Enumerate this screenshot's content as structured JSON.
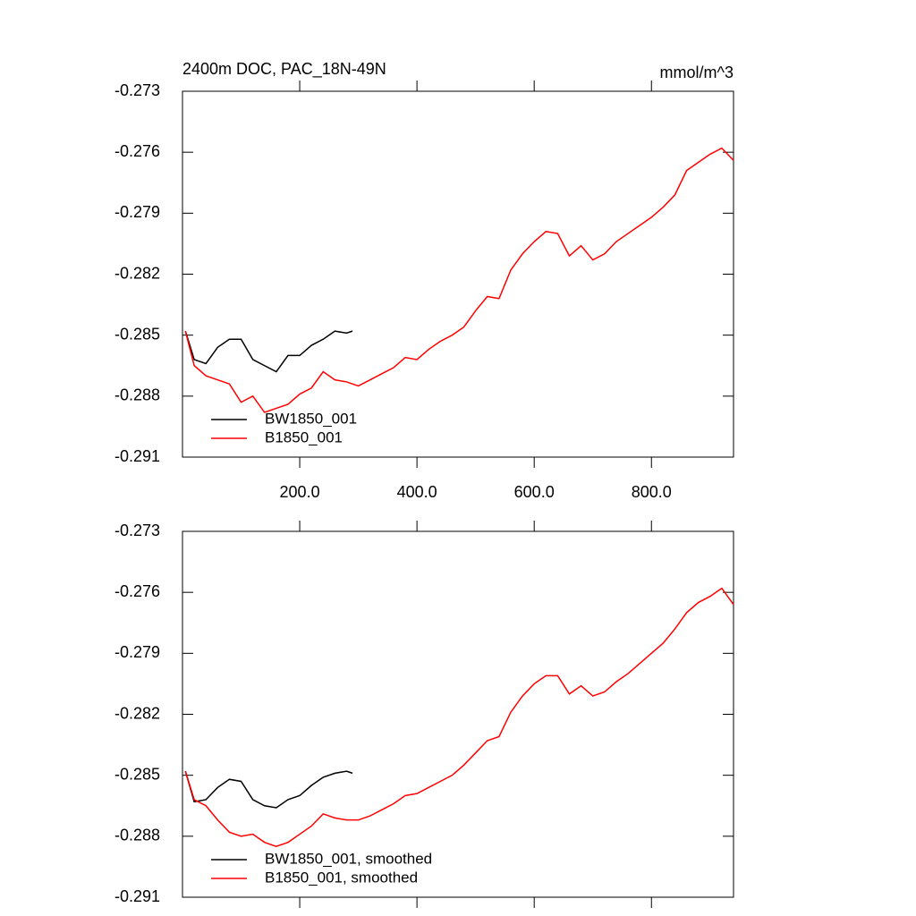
{
  "chart_data": [
    {
      "type": "line",
      "title": "2400m DOC, PAC_18N-49N",
      "subtitle": "mmol/m^3",
      "xlim": [
        0,
        940
      ],
      "ylim": [
        -0.291,
        -0.273
      ],
      "xticks": [
        {
          "value": 200,
          "label": "200.0"
        },
        {
          "value": 400,
          "label": "400.0"
        },
        {
          "value": 600,
          "label": "600.0"
        },
        {
          "value": 800,
          "label": "800.0"
        }
      ],
      "yticks": [
        -0.291,
        -0.288,
        -0.285,
        -0.282,
        -0.279,
        -0.276,
        -0.273
      ],
      "xtick_labels": true,
      "grid": false,
      "legend": "lower left",
      "series": [
        {
          "name": "BW1850_001",
          "color": "#000000",
          "x": [
            5,
            20,
            40,
            60,
            80,
            100,
            120,
            140,
            160,
            180,
            200,
            220,
            240,
            260,
            280,
            290
          ],
          "values": [
            -0.2848,
            -0.2862,
            -0.2864,
            -0.2856,
            -0.2852,
            -0.2852,
            -0.2862,
            -0.2865,
            -0.2868,
            -0.286,
            -0.286,
            -0.2855,
            -0.2852,
            -0.2848,
            -0.2849,
            -0.2848
          ]
        },
        {
          "name": "B1850_001",
          "color": "#ff0000",
          "x": [
            5,
            20,
            40,
            60,
            80,
            100,
            120,
            140,
            160,
            180,
            200,
            220,
            240,
            260,
            280,
            300,
            320,
            340,
            360,
            380,
            400,
            420,
            440,
            460,
            480,
            500,
            520,
            540,
            560,
            580,
            600,
            620,
            640,
            660,
            680,
            700,
            720,
            740,
            760,
            780,
            800,
            820,
            840,
            860,
            880,
            900,
            920,
            940
          ],
          "values": [
            -0.2848,
            -0.2865,
            -0.287,
            -0.2872,
            -0.2874,
            -0.2883,
            -0.288,
            -0.2888,
            -0.2886,
            -0.2884,
            -0.2879,
            -0.2876,
            -0.2868,
            -0.2872,
            -0.2873,
            -0.2875,
            -0.2872,
            -0.2869,
            -0.2866,
            -0.2861,
            -0.2862,
            -0.2857,
            -0.2853,
            -0.285,
            -0.2846,
            -0.2838,
            -0.2831,
            -0.2832,
            -0.2818,
            -0.281,
            -0.2804,
            -0.2799,
            -0.28,
            -0.2811,
            -0.2806,
            -0.2813,
            -0.281,
            -0.2804,
            -0.28,
            -0.2796,
            -0.2792,
            -0.2787,
            -0.2781,
            -0.2769,
            -0.2765,
            -0.2761,
            -0.2758,
            -0.2764
          ]
        }
      ]
    },
    {
      "type": "line",
      "xlim": [
        0,
        940
      ],
      "ylim": [
        -0.291,
        -0.273
      ],
      "xticks": [
        200,
        400,
        600,
        800
      ],
      "yticks": [
        -0.291,
        -0.288,
        -0.285,
        -0.282,
        -0.279,
        -0.276,
        -0.273
      ],
      "xtick_labels": false,
      "grid": false,
      "legend": "lower left",
      "series": [
        {
          "name": "BW1850_001, smoothed",
          "color": "#000000",
          "x": [
            5,
            20,
            40,
            60,
            80,
            100,
            120,
            140,
            160,
            180,
            200,
            220,
            240,
            260,
            280,
            290
          ],
          "values": [
            -0.2848,
            -0.2863,
            -0.2862,
            -0.2856,
            -0.2852,
            -0.2853,
            -0.2862,
            -0.2865,
            -0.2866,
            -0.2862,
            -0.286,
            -0.2855,
            -0.2851,
            -0.2849,
            -0.2848,
            -0.2849
          ]
        },
        {
          "name": "B1850_001, smoothed",
          "color": "#ff0000",
          "x": [
            5,
            20,
            40,
            60,
            80,
            100,
            120,
            140,
            160,
            180,
            200,
            220,
            240,
            260,
            280,
            300,
            320,
            340,
            360,
            380,
            400,
            420,
            440,
            460,
            480,
            500,
            520,
            540,
            560,
            580,
            600,
            620,
            640,
            660,
            680,
            700,
            720,
            740,
            760,
            780,
            800,
            820,
            840,
            860,
            880,
            900,
            920,
            940
          ],
          "values": [
            -0.2848,
            -0.2862,
            -0.2865,
            -0.2872,
            -0.2878,
            -0.288,
            -0.2879,
            -0.2883,
            -0.2885,
            -0.2883,
            -0.2879,
            -0.2875,
            -0.2869,
            -0.2871,
            -0.2872,
            -0.2872,
            -0.287,
            -0.2867,
            -0.2864,
            -0.286,
            -0.2859,
            -0.2856,
            -0.2853,
            -0.285,
            -0.2845,
            -0.2839,
            -0.2833,
            -0.2831,
            -0.2819,
            -0.2811,
            -0.2805,
            -0.2801,
            -0.2801,
            -0.281,
            -0.2806,
            -0.2811,
            -0.2809,
            -0.2804,
            -0.28,
            -0.2795,
            -0.279,
            -0.2785,
            -0.2778,
            -0.277,
            -0.2765,
            -0.2762,
            -0.2758,
            -0.2766
          ]
        }
      ]
    }
  ]
}
